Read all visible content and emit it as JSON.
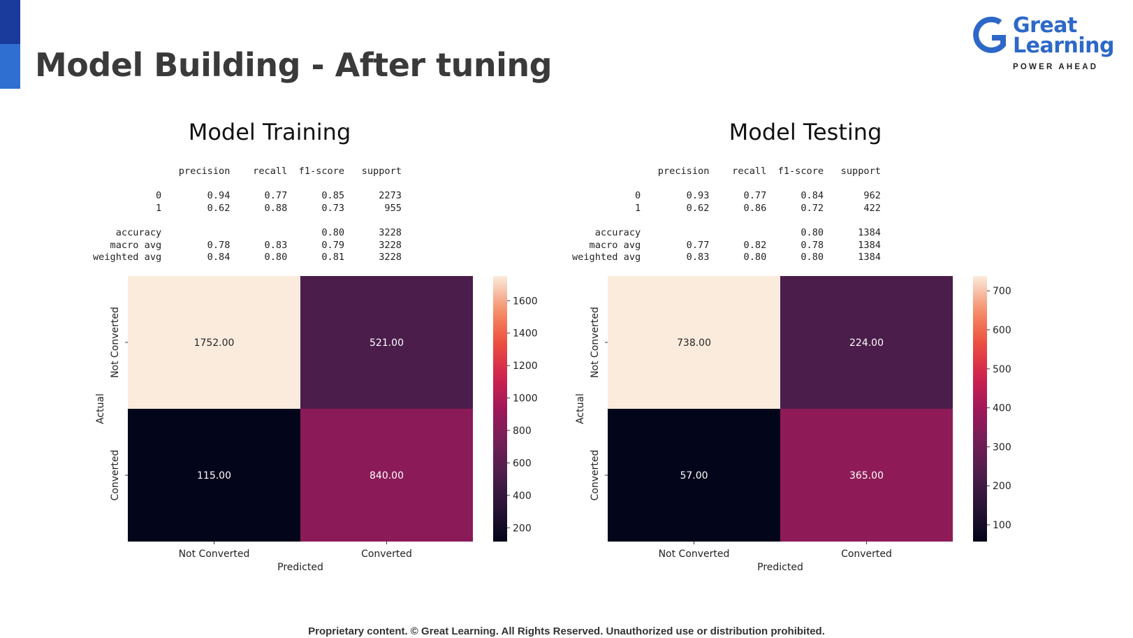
{
  "slide": {
    "title": "Model Building - After tuning",
    "footer": "Proprietary content. © Great Learning. All Rights Reserved. Unauthorized use or distribution prohibited.",
    "accent_colors": [
      "#1a3a9c",
      "#2f6fd1"
    ]
  },
  "logo": {
    "name_line1": "Great",
    "name_line2": "Learning",
    "tagline": "POWER AHEAD",
    "brand_color": "#2d68c8",
    "icon": "great-learning-g-icon"
  },
  "panels": [
    {
      "title": "Model Training",
      "report": {
        "headers": [
          "precision",
          "recall",
          "f1-score",
          "support"
        ],
        "rows": [
          {
            "label": "0",
            "values": [
              "0.94",
              "0.77",
              "0.85",
              "2273"
            ]
          },
          {
            "label": "1",
            "values": [
              "0.62",
              "0.88",
              "0.73",
              "955"
            ]
          },
          {
            "label": "",
            "values": [
              "",
              "",
              "",
              ""
            ]
          },
          {
            "label": "accuracy",
            "values": [
              "",
              "",
              "0.80",
              "3228"
            ]
          },
          {
            "label": "macro avg",
            "values": [
              "0.78",
              "0.83",
              "0.79",
              "3228"
            ]
          },
          {
            "label": "weighted avg",
            "values": [
              "0.84",
              "0.80",
              "0.81",
              "3228"
            ]
          }
        ]
      }
    },
    {
      "title": "Model Testing",
      "report": {
        "headers": [
          "precision",
          "recall",
          "f1-score",
          "support"
        ],
        "rows": [
          {
            "label": "0",
            "values": [
              "0.93",
              "0.77",
              "0.84",
              "962"
            ]
          },
          {
            "label": "1",
            "values": [
              "0.62",
              "0.86",
              "0.72",
              "422"
            ]
          },
          {
            "label": "",
            "values": [
              "",
              "",
              "",
              ""
            ]
          },
          {
            "label": "accuracy",
            "values": [
              "",
              "",
              "0.80",
              "1384"
            ]
          },
          {
            "label": "macro avg",
            "values": [
              "0.77",
              "0.82",
              "0.78",
              "1384"
            ]
          },
          {
            "label": "weighted avg",
            "values": [
              "0.83",
              "0.80",
              "0.80",
              "1384"
            ]
          }
        ]
      }
    }
  ],
  "chart_data": [
    {
      "type": "heatmap",
      "title": "",
      "xlabel": "Predicted",
      "ylabel": "Actual",
      "x_categories": [
        "Not Converted",
        "Converted"
      ],
      "y_categories": [
        "Not Converted",
        "Converted"
      ],
      "values": [
        [
          1752,
          521
        ],
        [
          115,
          840
        ]
      ],
      "cell_labels": [
        [
          "1752.00",
          "521.00"
        ],
        [
          "115.00",
          "840.00"
        ]
      ],
      "colorbar": {
        "min": 115,
        "max": 1752,
        "ticks": [
          200,
          400,
          600,
          800,
          1000,
          1200,
          1400,
          1600
        ],
        "colormap": "rocket"
      }
    },
    {
      "type": "heatmap",
      "title": "",
      "xlabel": "Predicted",
      "ylabel": "Actual",
      "x_categories": [
        "Not Converted",
        "Converted"
      ],
      "y_categories": [
        "Not Converted",
        "Converted"
      ],
      "values": [
        [
          738,
          224
        ],
        [
          57,
          365
        ]
      ],
      "cell_labels": [
        [
          "738.00",
          "224.00"
        ],
        [
          "57.00",
          "365.00"
        ]
      ],
      "colorbar": {
        "min": 57,
        "max": 738,
        "ticks": [
          100,
          200,
          300,
          400,
          500,
          600,
          700
        ],
        "colormap": "rocket"
      }
    }
  ]
}
